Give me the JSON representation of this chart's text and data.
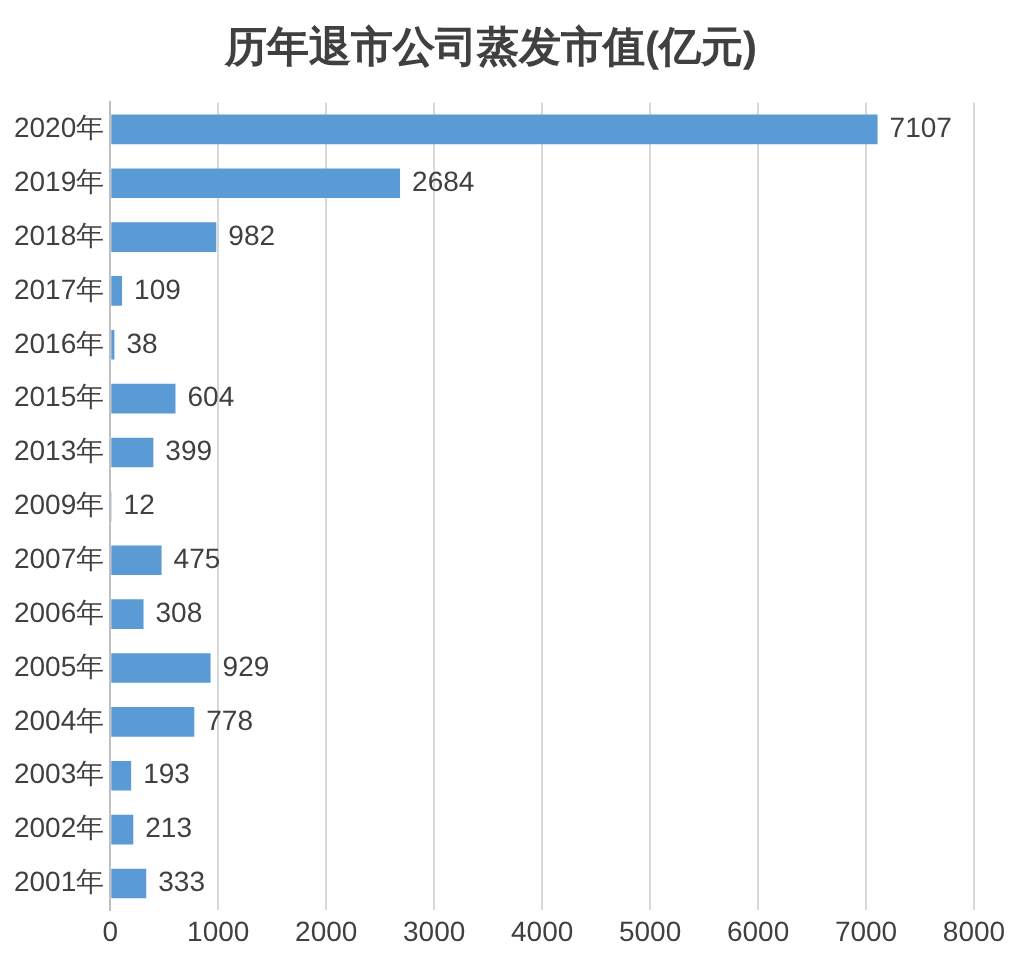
{
  "chart_data": {
    "type": "bar",
    "orientation": "horizontal",
    "title": "历年退市公司蒸发市值(亿元)",
    "categories": [
      "2020年",
      "2019年",
      "2018年",
      "2017年",
      "2016年",
      "2015年",
      "2013年",
      "2009年",
      "2007年",
      "2006年",
      "2005年",
      "2004年",
      "2003年",
      "2002年",
      "2001年"
    ],
    "values": [
      7107,
      2684,
      982,
      109,
      38,
      604,
      399,
      12,
      475,
      308,
      929,
      778,
      193,
      213,
      333
    ],
    "color": "#5b9bd5",
    "xlim": [
      0,
      8000
    ],
    "xticks": [
      0,
      1000,
      2000,
      3000,
      4000,
      5000,
      6000,
      7000,
      8000
    ],
    "grid": "x",
    "data_labels": true
  }
}
